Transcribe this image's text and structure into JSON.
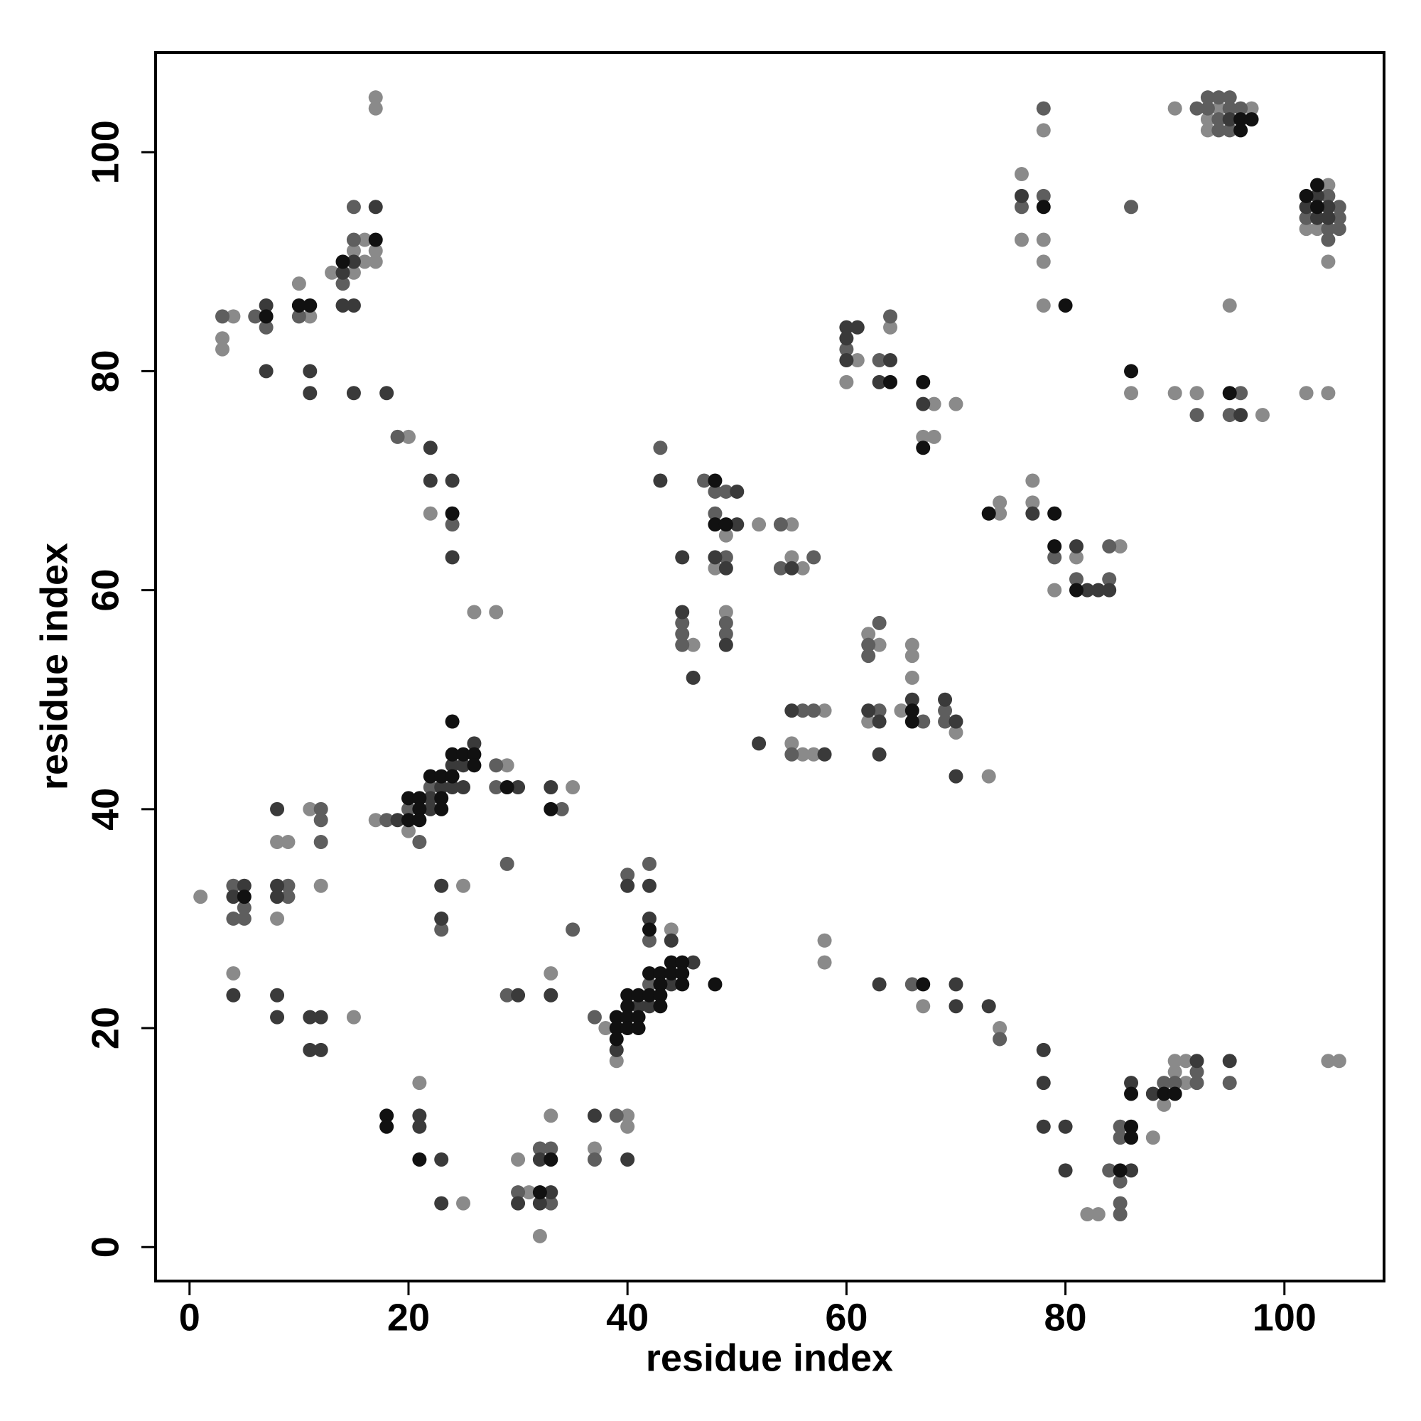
{
  "chart_data": {
    "type": "scatter",
    "xlabel": "residue index",
    "ylabel": "residue index",
    "xlim": [
      -3.1,
      109.1
    ],
    "ylim": [
      -3.1,
      109.1
    ],
    "xticks": [
      0,
      20,
      40,
      60,
      80,
      100
    ],
    "yticks": [
      0,
      20,
      40,
      60,
      80,
      100
    ],
    "grid": false,
    "series": [
      {
        "color": "#8a8a8a",
        "x": [
          1,
          3,
          3,
          4,
          4,
          8,
          9,
          8,
          10,
          11,
          11,
          12,
          13,
          15,
          15,
          16,
          16,
          17,
          17,
          17,
          17,
          15,
          20,
          17,
          20,
          21,
          25,
          22,
          25,
          26,
          28,
          29,
          30,
          31,
          33,
          32,
          35,
          33,
          38,
          39,
          44,
          37,
          40,
          40,
          46,
          49,
          48,
          49,
          52,
          55,
          55,
          56,
          58,
          55,
          56,
          57,
          58,
          58,
          61,
          60,
          64,
          62,
          63,
          62,
          65,
          66,
          66,
          66,
          68,
          67,
          68,
          70,
          70,
          73,
          67,
          74,
          74,
          74,
          77,
          77,
          79,
          81,
          85,
          76,
          76,
          78,
          78,
          78,
          78,
          82,
          83,
          88,
          86,
          89,
          90,
          90,
          91,
          91,
          90,
          92,
          98,
          95,
          90,
          93,
          93,
          94,
          97,
          102,
          103,
          104,
          104,
          102,
          104,
          104,
          105
        ],
        "values": [
          32,
          83,
          82,
          85,
          25,
          37,
          37,
          30,
          88,
          85,
          40,
          33,
          89,
          89,
          91,
          92,
          90,
          91,
          90,
          105,
          104,
          21,
          74,
          39,
          38,
          15,
          4,
          67,
          33,
          58,
          58,
          44,
          8,
          5,
          12,
          1,
          42,
          25,
          20,
          17,
          29,
          9,
          12,
          11,
          55,
          65,
          62,
          58,
          66,
          66,
          63,
          62,
          49,
          46,
          45,
          45,
          28,
          26,
          81,
          79,
          84,
          56,
          55,
          48,
          49,
          55,
          54,
          52,
          77,
          74,
          74,
          77,
          47,
          43,
          22,
          20,
          68,
          67,
          70,
          68,
          60,
          63,
          64,
          98,
          92,
          92,
          90,
          86,
          102,
          3,
          3,
          10,
          78,
          13,
          17,
          16,
          17,
          15,
          78,
          78,
          76,
          86,
          104,
          103,
          102,
          104,
          104,
          93,
          93,
          97,
          90,
          78,
          78,
          17,
          17
        ]
      },
      {
        "color": "#5e5e5e",
        "x": [
          3,
          4,
          4,
          5,
          5,
          6,
          7,
          9,
          9,
          10,
          12,
          12,
          12,
          14,
          15,
          15,
          19,
          18,
          20,
          21,
          22,
          24,
          23,
          28,
          28,
          29,
          29,
          30,
          32,
          33,
          33,
          34,
          35,
          37,
          42,
          40,
          42,
          42,
          37,
          39,
          43,
          45,
          45,
          45,
          47,
          48,
          49,
          48,
          49,
          49,
          49,
          54,
          54,
          57,
          56,
          57,
          55,
          60,
          63,
          64,
          62,
          62,
          63,
          63,
          67,
          69,
          69,
          66,
          74,
          79,
          81,
          84,
          84,
          76,
          78,
          78,
          84,
          85,
          85,
          85,
          85,
          85,
          86,
          89,
          90,
          92,
          92,
          95,
          92,
          95,
          96,
          92,
          93,
          93,
          94,
          94,
          94,
          95,
          95,
          95,
          96,
          102,
          104,
          104,
          104,
          105,
          105,
          105
        ],
        "values": [
          85,
          33,
          30,
          31,
          30,
          85,
          84,
          33,
          32,
          85,
          40,
          39,
          37,
          88,
          95,
          92,
          74,
          39,
          40,
          37,
          42,
          66,
          29,
          44,
          42,
          35,
          23,
          5,
          9,
          9,
          4,
          40,
          29,
          21,
          24,
          34,
          35,
          28,
          8,
          12,
          73,
          57,
          56,
          55,
          70,
          69,
          69,
          67,
          63,
          57,
          56,
          66,
          62,
          63,
          49,
          49,
          45,
          82,
          81,
          85,
          55,
          54,
          57,
          49,
          48,
          49,
          48,
          24,
          19,
          63,
          61,
          61,
          64,
          95,
          96,
          104,
          7,
          11,
          10,
          6,
          4,
          3,
          95,
          15,
          15,
          16,
          15,
          15,
          76,
          76,
          78,
          104,
          105,
          104,
          105,
          103,
          102,
          105,
          104,
          102,
          104,
          94,
          96,
          93,
          92,
          95,
          94,
          93
        ]
      },
      {
        "color": "#3a3a3a",
        "x": [
          4,
          5,
          4,
          7,
          7,
          8,
          8,
          8,
          8,
          8,
          11,
          11,
          11,
          12,
          11,
          12,
          14,
          14,
          15,
          15,
          17,
          15,
          18,
          19,
          22,
          22,
          23,
          24,
          24,
          25,
          25,
          26,
          21,
          21,
          23,
          23,
          22,
          22,
          24,
          24,
          23,
          23,
          30,
          30,
          30,
          32,
          32,
          33,
          33,
          33,
          39,
          41,
          42,
          44,
          46,
          40,
          42,
          42,
          44,
          37,
          40,
          43,
          45,
          45,
          46,
          50,
          50,
          48,
          49,
          49,
          55,
          52,
          55,
          58,
          60,
          60,
          60,
          61,
          63,
          64,
          62,
          63,
          63,
          66,
          67,
          69,
          70,
          70,
          63,
          70,
          70,
          73,
          77,
          81,
          82,
          83,
          84,
          76,
          78,
          78,
          78,
          80,
          80,
          86,
          86,
          88,
          92,
          95,
          96,
          95,
          102,
          103,
          103,
          104,
          104
        ],
        "values": [
          32,
          33,
          23,
          86,
          80,
          40,
          33,
          32,
          23,
          21,
          80,
          78,
          21,
          21,
          18,
          18,
          89,
          86,
          90,
          86,
          95,
          78,
          78,
          39,
          41,
          40,
          42,
          44,
          42,
          44,
          42,
          46,
          12,
          11,
          8,
          4,
          73,
          70,
          70,
          63,
          33,
          30,
          42,
          23,
          4,
          8,
          4,
          5,
          42,
          23,
          18,
          22,
          22,
          24,
          26,
          33,
          33,
          30,
          28,
          12,
          8,
          70,
          63,
          58,
          52,
          69,
          66,
          63,
          62,
          55,
          62,
          46,
          49,
          45,
          84,
          83,
          81,
          84,
          79,
          81,
          49,
          48,
          45,
          50,
          77,
          50,
          48,
          43,
          24,
          24,
          22,
          22,
          67,
          64,
          60,
          60,
          60,
          96,
          18,
          15,
          11,
          11,
          7,
          15,
          7,
          14,
          17,
          17,
          76,
          103,
          95,
          96,
          94,
          95,
          94
        ]
      },
      {
        "color": "#111111",
        "x": [
          5,
          7,
          10,
          11,
          14,
          17,
          18,
          18,
          20,
          20,
          21,
          21,
          21,
          22,
          23,
          23,
          23,
          24,
          24,
          24,
          25,
          26,
          26,
          24,
          29,
          32,
          33,
          33,
          21,
          39,
          39,
          39,
          40,
          40,
          40,
          40,
          41,
          41,
          41,
          42,
          42,
          43,
          43,
          43,
          43,
          44,
          44,
          45,
          45,
          45,
          48,
          42,
          48,
          48,
          49,
          64,
          66,
          66,
          67,
          67,
          67,
          73,
          79,
          79,
          81,
          78,
          80,
          85,
          86,
          86,
          86,
          86,
          89,
          90,
          95,
          96,
          96,
          97,
          102,
          103,
          103
        ],
        "values": [
          32,
          85,
          86,
          86,
          90,
          92,
          12,
          11,
          39,
          41,
          41,
          40,
          39,
          43,
          43,
          41,
          40,
          43,
          45,
          48,
          45,
          45,
          44,
          67,
          42,
          5,
          8,
          40,
          8,
          21,
          20,
          19,
          23,
          22,
          21,
          20,
          23,
          21,
          20,
          25,
          23,
          25,
          24,
          23,
          22,
          26,
          25,
          26,
          25,
          24,
          24,
          29,
          70,
          66,
          66,
          79,
          49,
          48,
          79,
          73,
          24,
          67,
          67,
          64,
          60,
          95,
          86,
          7,
          14,
          11,
          10,
          80,
          14,
          14,
          78,
          103,
          102,
          103,
          96,
          97,
          95
        ]
      }
    ]
  }
}
